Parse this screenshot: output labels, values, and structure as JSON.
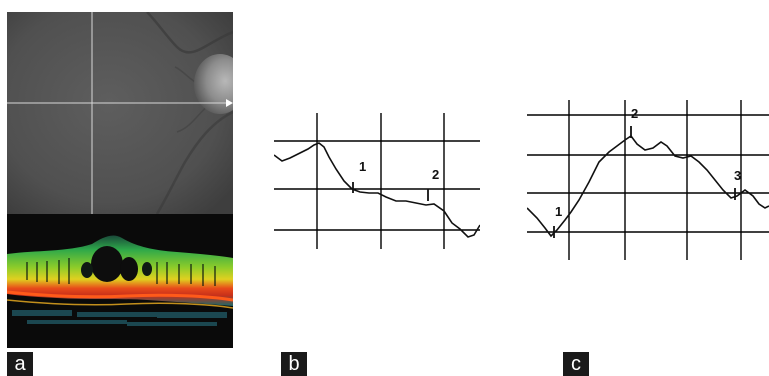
{
  "figure": {
    "panels": [
      {
        "label": "a"
      },
      {
        "label": "b",
        "markers": [
          "1",
          "2"
        ]
      },
      {
        "label": "c",
        "markers": [
          "1",
          "2",
          "3"
        ]
      }
    ]
  },
  "colors": {
    "fundus_background": "#565656",
    "oct_background": "#0a0a0a",
    "grid": "#000000",
    "trace": "#111111",
    "label_bg": "#1a1a1a",
    "label_fg": "#ffffff"
  }
}
